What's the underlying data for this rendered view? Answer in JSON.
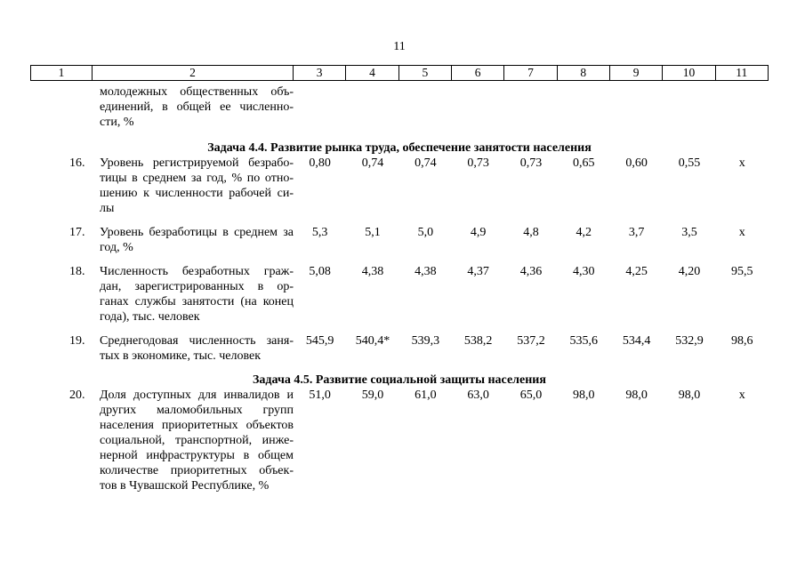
{
  "page": {
    "number": "11"
  },
  "table": {
    "header_cols": [
      "1",
      "2",
      "3",
      "4",
      "5",
      "6",
      "7",
      "8",
      "9",
      "10",
      "11"
    ],
    "continuation": {
      "lines": [
        "молодежных общественных объ-",
        "единений, в общей ее численно-",
        "сти, %"
      ]
    },
    "sections": [
      {
        "title": "Задача 4.4. Развитие рынка труда, обеспечение занятости населения",
        "rows": [
          {
            "num": "16.",
            "lines": [
              "Уровень регистрируемой безрабо-",
              "тицы в среднем за год, % по отно-",
              "шению к численности рабочей си-",
              "лы"
            ],
            "values": [
              "0,80",
              "0,74",
              "0,74",
              "0,73",
              "0,73",
              "0,65",
              "0,60",
              "0,55",
              "x"
            ]
          },
          {
            "num": "17.",
            "lines": [
              "Уровень безработицы в среднем за",
              "год, %"
            ],
            "values": [
              "5,3",
              "5,1",
              "5,0",
              "4,9",
              "4,8",
              "4,2",
              "3,7",
              "3,5",
              "x"
            ]
          },
          {
            "num": "18.",
            "lines": [
              "Численность безработных граж-",
              "дан, зарегистрированных в ор-",
              "ганах службы занятости (на конец",
              "года), тыс. человек"
            ],
            "values": [
              "5,08",
              "4,38",
              "4,38",
              "4,37",
              "4,36",
              "4,30",
              "4,25",
              "4,20",
              "95,5"
            ]
          },
          {
            "num": "19.",
            "lines": [
              "Среднегодовая численность заня-",
              "тых в экономике, тыс. человек"
            ],
            "values": [
              "545,9",
              "540,4*",
              "539,3",
              "538,2",
              "537,2",
              "535,6",
              "534,4",
              "532,9",
              "98,6"
            ]
          }
        ]
      },
      {
        "title": "Задача 4.5. Развитие социальной защиты населения",
        "rows": [
          {
            "num": "20.",
            "lines": [
              "Доля доступных для инвалидов и",
              "других маломобильных групп",
              "населения приоритетных объектов",
              "социальной, транспортной, инже-",
              "нерной инфраструктуры в общем",
              "количестве приоритетных объек-",
              "тов в Чувашской Республике, %"
            ],
            "values": [
              "51,0",
              "59,0",
              "61,0",
              "63,0",
              "65,0",
              "98,0",
              "98,0",
              "98,0",
              "x"
            ]
          }
        ]
      }
    ]
  }
}
